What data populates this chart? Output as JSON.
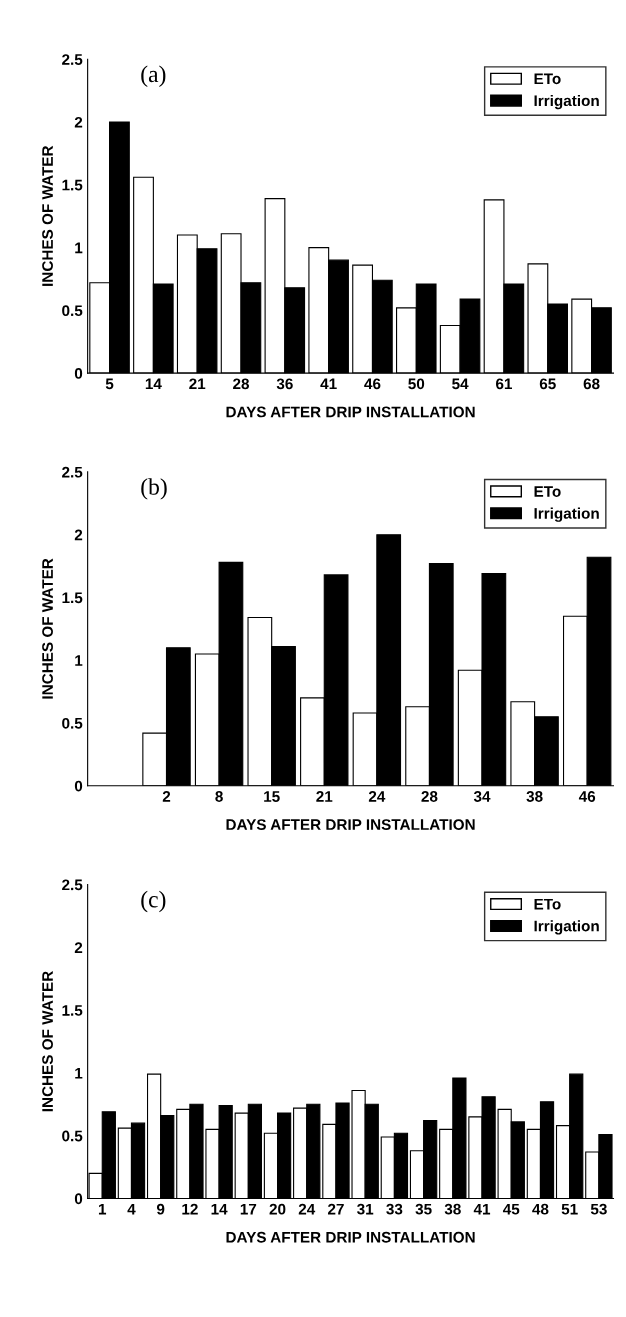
{
  "chart_data": [
    {
      "type": "bar",
      "title": "(a)",
      "xlabel": "DAYS AFTER DRIP INSTALLATION",
      "ylabel": "INCHES OF WATER",
      "categories": [
        "5",
        "14",
        "21",
        "28",
        "36",
        "41",
        "46",
        "50",
        "54",
        "61",
        "65",
        "68"
      ],
      "series": [
        {
          "name": "ETo",
          "color": "#ffffff",
          "values": [
            0.72,
            1.56,
            1.1,
            1.11,
            1.39,
            1.0,
            0.86,
            0.52,
            0.38,
            1.38,
            0.87,
            0.59
          ]
        },
        {
          "name": "Irrigation",
          "color": "#000000",
          "values": [
            2.0,
            0.71,
            0.99,
            0.72,
            0.68,
            0.9,
            0.74,
            0.71,
            0.59,
            0.71,
            0.55,
            0.52
          ]
        }
      ],
      "ylim": [
        0,
        2.5
      ],
      "yticks": [
        0,
        0.5,
        1,
        1.5,
        2,
        2.5
      ],
      "legend": "top right",
      "grid": false
    },
    {
      "type": "bar",
      "title": "(b)",
      "xlabel": "DAYS AFTER DRIP INSTALLATION",
      "ylabel": "INCHES OF WATER",
      "categories": [
        null,
        "2",
        "8",
        "15",
        "21",
        "24",
        "28",
        "34",
        "38",
        "46"
      ],
      "series": [
        {
          "name": "ETo",
          "color": "#ffffff",
          "values": [
            null,
            0.42,
            1.05,
            1.34,
            0.7,
            0.58,
            0.63,
            0.92,
            0.67,
            1.35
          ]
        },
        {
          "name": "Irrigation",
          "color": "#000000",
          "values": [
            null,
            1.1,
            1.78,
            1.11,
            1.68,
            2.0,
            1.77,
            1.69,
            0.55,
            1.82
          ]
        }
      ],
      "ylim": [
        0,
        2.5
      ],
      "yticks": [
        0,
        0.5,
        1,
        1.5,
        2,
        2.5
      ],
      "legend": "top right",
      "grid": false
    },
    {
      "type": "bar",
      "title": "(c)",
      "xlabel": "DAYS AFTER DRIP INSTALLATION",
      "ylabel": "INCHES OF WATER",
      "categories": [
        "1",
        "4",
        "9",
        "12",
        "14",
        "17",
        "20",
        "24",
        "27",
        "31",
        "33",
        "35",
        "38",
        "41",
        "45",
        "48",
        "51",
        "53"
      ],
      "series": [
        {
          "name": "ETo",
          "color": "#ffffff",
          "values": [
            0.2,
            0.56,
            0.99,
            0.71,
            0.55,
            0.68,
            0.52,
            0.72,
            0.59,
            0.86,
            0.49,
            0.38,
            0.55,
            0.65,
            0.71,
            0.55,
            0.58,
            0.37
          ]
        },
        {
          "name": "Irrigation",
          "color": "#000000",
          "values": [
            0.69,
            0.6,
            0.66,
            0.75,
            0.74,
            0.75,
            0.68,
            0.75,
            0.76,
            0.75,
            0.52,
            0.62,
            0.96,
            0.81,
            0.61,
            0.77,
            0.99,
            0.51
          ]
        }
      ],
      "ylim": [
        0,
        2.5
      ],
      "yticks": [
        0,
        0.5,
        1,
        1.5,
        2,
        2.5
      ],
      "legend": "top right",
      "grid": false
    }
  ]
}
